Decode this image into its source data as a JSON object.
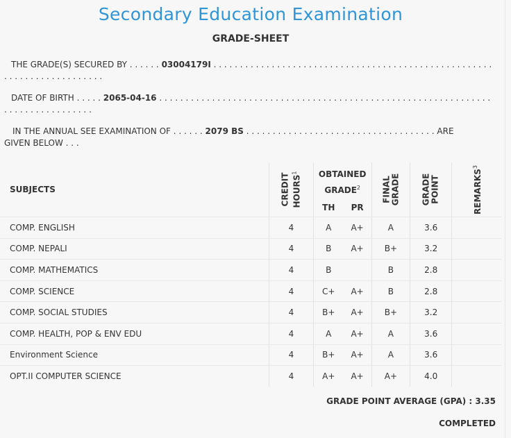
{
  "header": {
    "title": "Secondary Education Examination",
    "subtitle": "GRADE-SHEET"
  },
  "info": {
    "secured_by_label": "THE GRADE(S) SECURED BY",
    "symbol_no": "03004179I",
    "dob_label": "DATE OF BIRTH",
    "dob": "2065-04-16",
    "exam_label": "IN THE ANNUAL SEE EXAMINATION OF",
    "exam_year": "2079 BS",
    "exam_suffix_1": "ARE",
    "exam_suffix_2": "GIVEN BELOW . . ."
  },
  "table": {
    "headers": {
      "subjects": "SUBJECTS",
      "credit_hours_1": "CREDIT",
      "credit_hours_2": "HOURS",
      "credit_sup": "1",
      "obtained_1": "OBTAINED",
      "obtained_2": "GRADE",
      "obtained_sup": "2",
      "th": "TH",
      "pr": "PR",
      "final_1": "FINAL",
      "final_2": "GRADE",
      "gp_1": "GRADE",
      "gp_2": "POINT",
      "remarks": "REMARKS",
      "remarks_sup": "3"
    },
    "rows": [
      {
        "subject": "COMP. ENGLISH",
        "credit": "4",
        "th": "A",
        "pr": "A+",
        "final": "A",
        "gp": "3.6",
        "remarks": ""
      },
      {
        "subject": "COMP. NEPALI",
        "credit": "4",
        "th": "B",
        "pr": "A+",
        "final": "B+",
        "gp": "3.2",
        "remarks": ""
      },
      {
        "subject": "COMP. MATHEMATICS",
        "credit": "4",
        "th": "B",
        "pr": "",
        "final": "B",
        "gp": "2.8",
        "remarks": ""
      },
      {
        "subject": "COMP. SCIENCE",
        "credit": "4",
        "th": "C+",
        "pr": "A+",
        "final": "B",
        "gp": "2.8",
        "remarks": ""
      },
      {
        "subject": "COMP. SOCIAL STUDIES",
        "credit": "4",
        "th": "B+",
        "pr": "A+",
        "final": "B+",
        "gp": "3.2",
        "remarks": ""
      },
      {
        "subject": "COMP. HEALTH, POP & ENV EDU",
        "credit": "4",
        "th": "A",
        "pr": "A+",
        "final": "A",
        "gp": "3.6",
        "remarks": ""
      },
      {
        "subject": "Environment Science",
        "credit": "4",
        "th": "B+",
        "pr": "A+",
        "final": "A",
        "gp": "3.6",
        "remarks": ""
      },
      {
        "subject": "OPT.II COMPUTER SCIENCE",
        "credit": "4",
        "th": "A+",
        "pr": "A+",
        "final": "A+",
        "gp": "4.0",
        "remarks": ""
      }
    ]
  },
  "footer": {
    "gpa_label": "GRADE POINT AVERAGE (GPA) :",
    "gpa_value": "3.35",
    "status": "COMPLETED"
  }
}
